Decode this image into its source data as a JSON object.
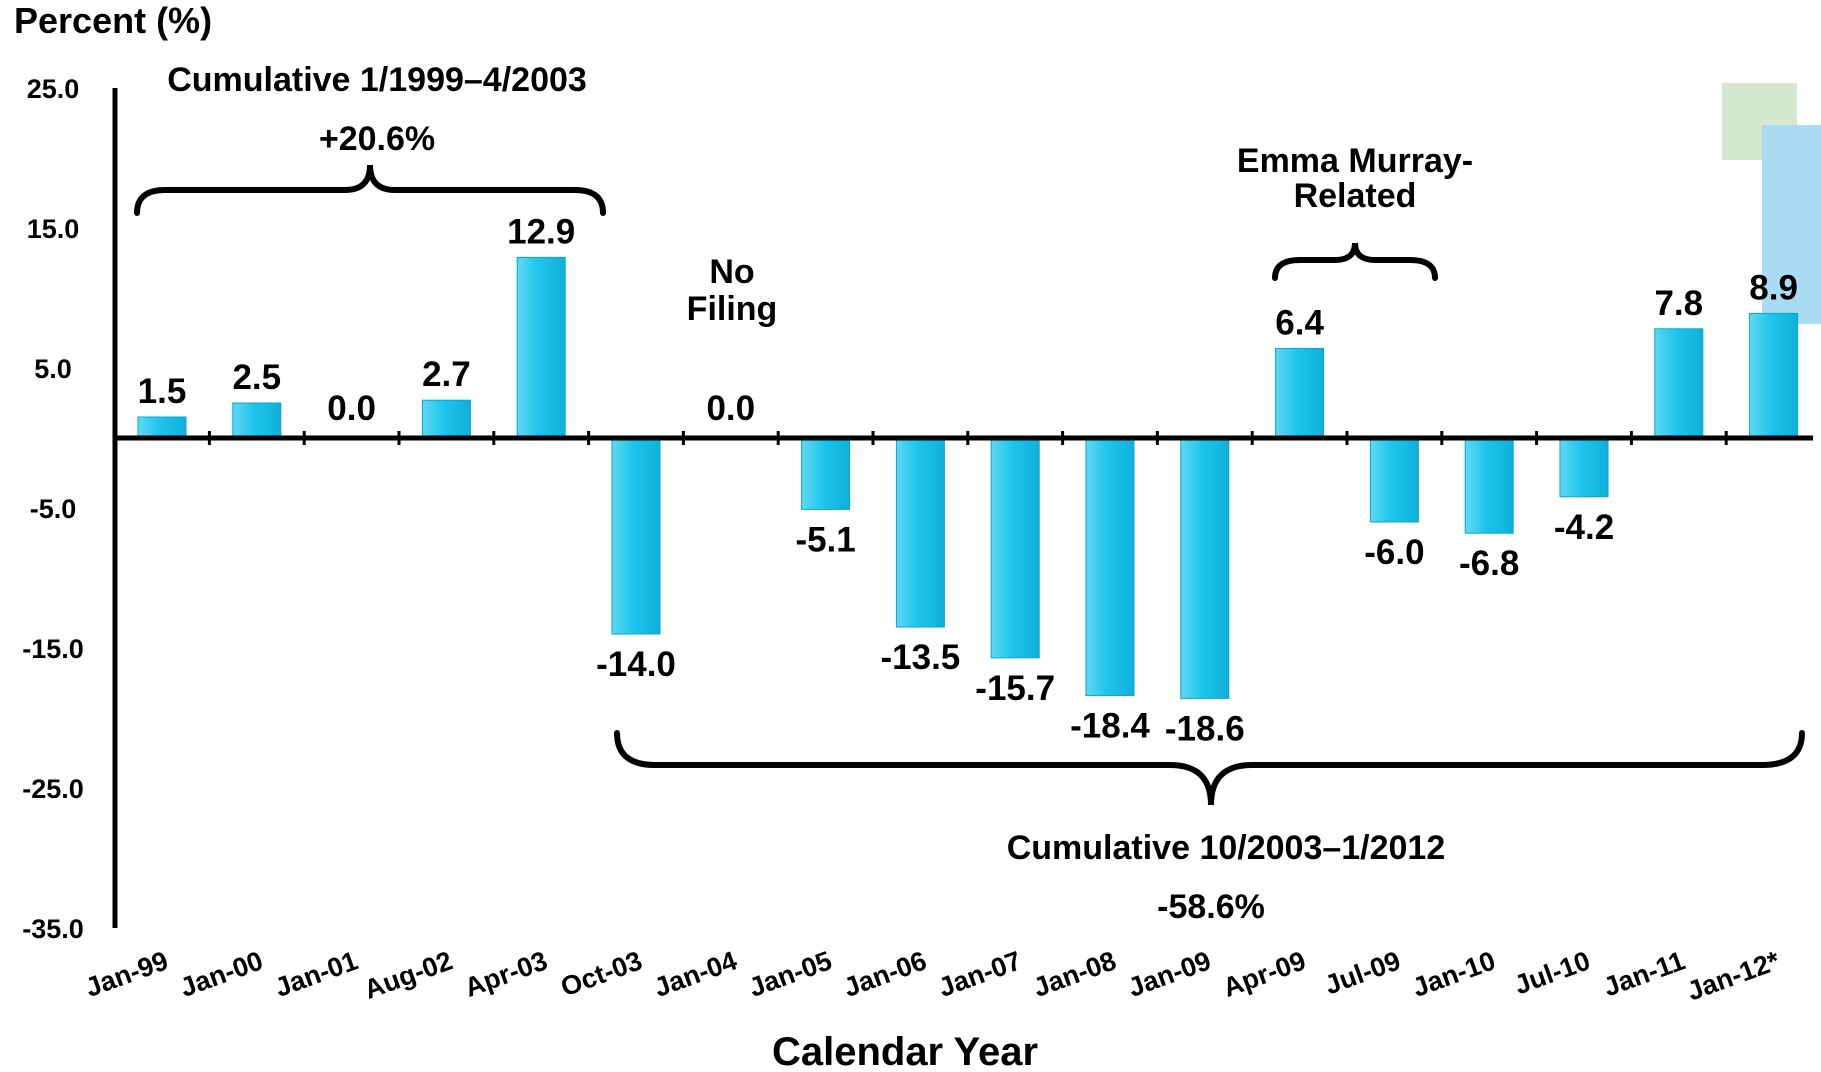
{
  "chart_data": {
    "type": "bar",
    "ylabel": "Percent (%)",
    "xlabel": "Calendar Year",
    "ylim": [
      -35,
      25
    ],
    "yticks": [
      "25.0",
      "15.0",
      "5.0",
      "-5.0",
      "-15.0",
      "-25.0",
      "-35.0"
    ],
    "categories": [
      "Jan-99",
      "Jan-00",
      "Jan-01",
      "Aug-02",
      "Apr-03",
      "Oct-03",
      "Jan-04",
      "Jan-05",
      "Jan-06",
      "Jan-07",
      "Jan-08",
      "Jan-09",
      "Apr-09",
      "Jul-09",
      "Jan-10",
      "Jul-10",
      "Jan-11",
      "Jan-12*"
    ],
    "values": [
      1.5,
      2.5,
      0.0,
      2.7,
      12.9,
      -14.0,
      0.0,
      -5.1,
      -13.5,
      -15.7,
      -18.4,
      -18.6,
      6.4,
      -6.0,
      -6.8,
      -4.2,
      7.8,
      8.9
    ],
    "value_labels": [
      "1.5",
      "2.5",
      "0.0",
      "2.7",
      "12.9",
      "-14.0",
      "0.0",
      "-5.1",
      "-13.5",
      "-15.7",
      "-18.4",
      "-18.6",
      "6.4",
      "-6.0",
      "-6.8",
      "-4.2",
      "7.8",
      "8.9"
    ],
    "bar_color": "#22c8ee",
    "annotations": {
      "cumulative_1_title": "Cumulative 1/1999–4/2003",
      "cumulative_1_value": "+20.6%",
      "no_filing_line1": "No",
      "no_filing_line2": "Filing",
      "related_line1": "Emma Murray-",
      "related_line2": "Related",
      "cumulative_2_title": "Cumulative 10/2003–1/2012",
      "cumulative_2_value": "-58.6%"
    }
  }
}
